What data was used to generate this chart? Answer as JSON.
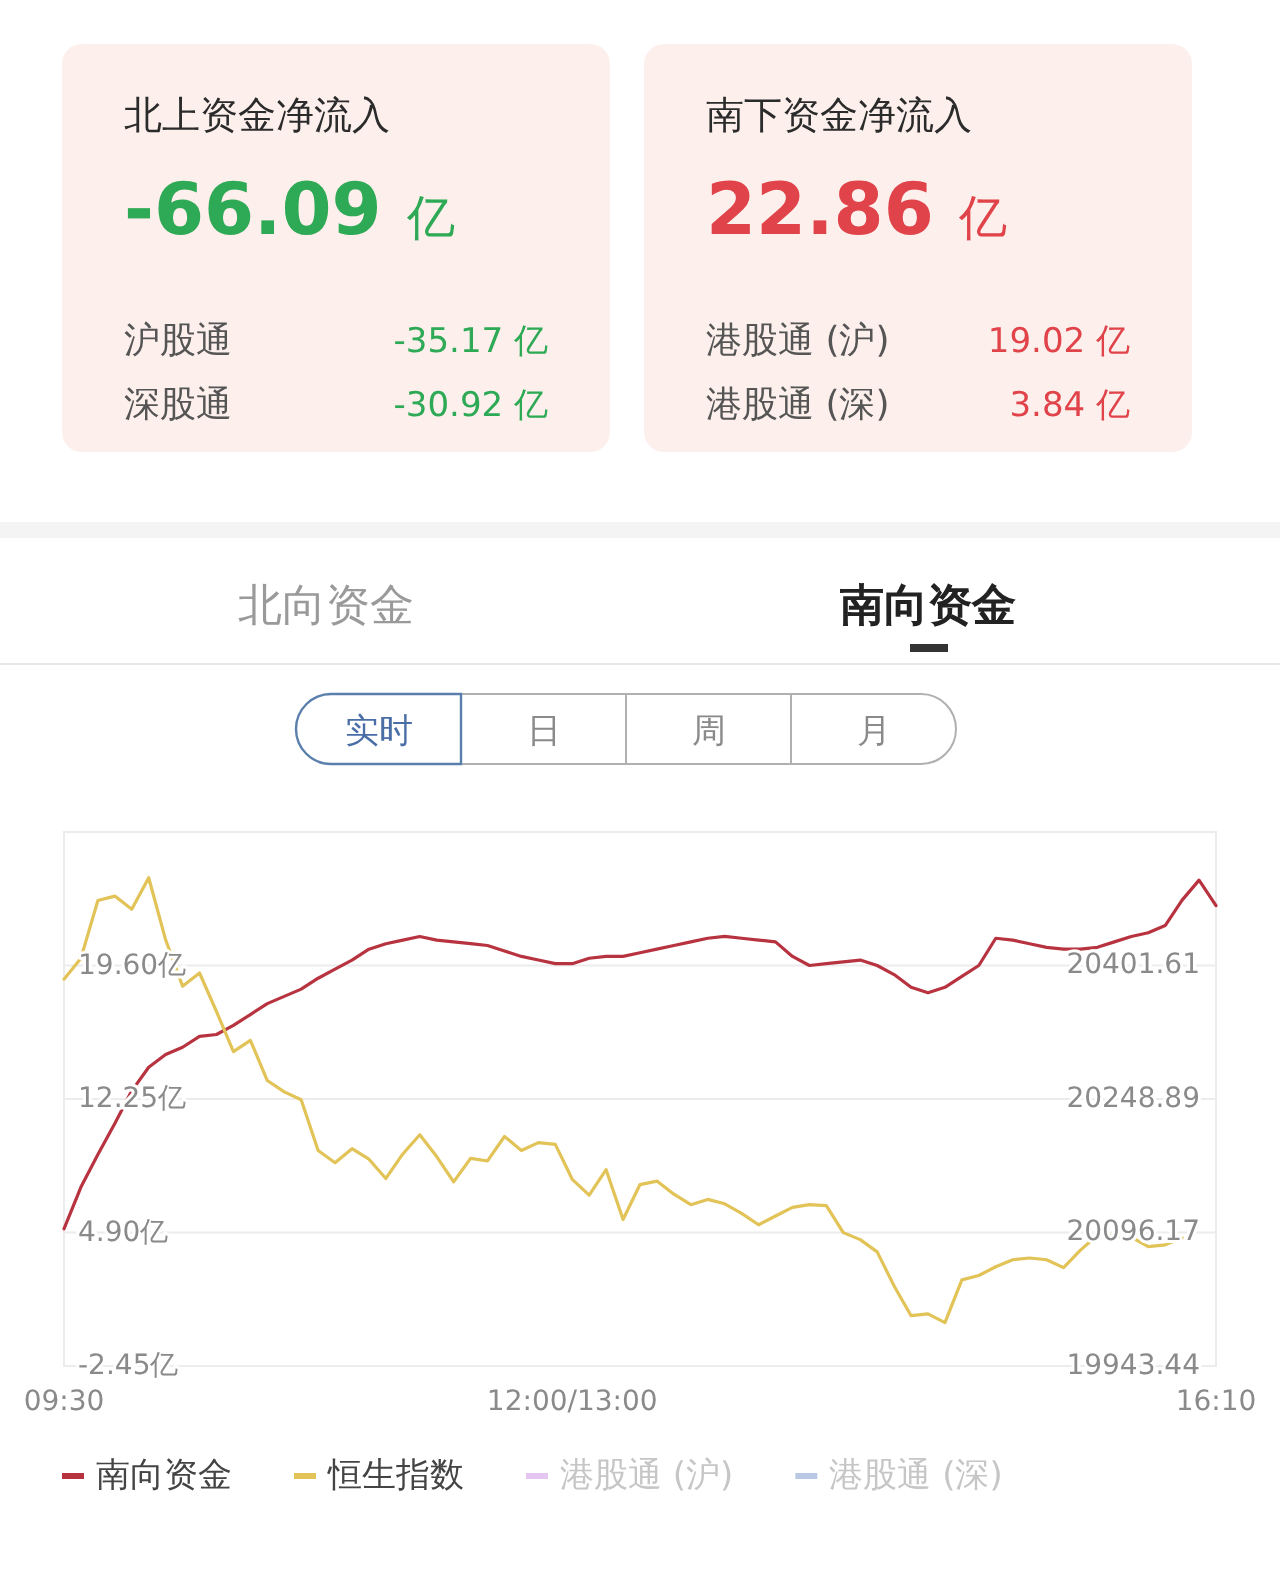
{
  "chart_data": [
    {
      "type": "other",
      "title": "北上资金净流入",
      "color": "#2ea955",
      "annotations": [
        "-66.09 亿",
        "沪股通",
        "-35.17 亿",
        "深股通",
        "-30.92 亿"
      ]
    },
    {
      "type": "other",
      "title": "南下资金净流入",
      "color": "#e0434a",
      "annotations": [
        "22.86 亿",
        "港股通 (沪)",
        "19.02 亿",
        "港股通 (深)",
        "3.84 亿"
      ]
    },
    {
      "type": "other",
      "annotations": [
        "北向资金",
        "南向资金",
        "实时",
        "日",
        "周",
        "月"
      ]
    },
    {
      "type": "line",
      "categories": [
        "09:30",
        null,
        null,
        null,
        null,
        null,
        null,
        null,
        null,
        null,
        null,
        null,
        null,
        null,
        null,
        null,
        null,
        null,
        null,
        null,
        null,
        null,
        null,
        null,
        null,
        null,
        null,
        null,
        null,
        null,
        "12:00/13:00",
        null,
        null,
        null,
        null,
        null,
        null,
        null,
        null,
        null,
        null,
        null,
        null,
        null,
        null,
        null,
        null,
        null,
        null,
        null,
        null,
        null,
        null,
        null,
        null,
        null,
        null,
        null,
        null,
        null,
        null,
        null,
        null,
        null,
        null,
        null,
        null,
        null,
        "16:10"
      ],
      "ylim": [
        -2.45,
        26.95
      ],
      "yticks": [
        {
          "value": -2.45,
          "label": "-2.45亿"
        },
        {
          "value": 4.9,
          "label": "4.90亿"
        },
        {
          "value": 12.25,
          "label": "12.25亿"
        },
        {
          "value": 19.6,
          "label": "19.60亿"
        }
      ],
      "y2lim": [
        19943.44,
        20554.33
      ],
      "y2ticks": [
        19943.44,
        20096.17,
        20248.89,
        20401.61
      ],
      "grid": "y",
      "legend": "bottom",
      "marker": "none",
      "line_style": "solid",
      "series": [
        {
          "name": "南向资金",
          "color": "#b83340",
          "values": [
            5.1,
            7.4,
            9.2,
            10.9,
            12.7,
            14.0,
            14.7,
            15.1,
            15.7,
            15.8,
            16.3,
            16.9,
            17.5,
            17.9,
            18.3,
            18.9,
            19.4,
            19.9,
            20.5,
            20.8,
            21.0,
            21.2,
            21.0,
            20.9,
            20.8,
            20.7,
            20.4,
            20.1,
            19.9,
            19.7,
            19.7,
            20.0,
            20.1,
            20.1,
            20.3,
            20.5,
            20.7,
            20.9,
            21.1,
            21.2,
            21.1,
            21.0,
            20.9,
            20.1,
            19.6,
            19.7,
            19.8,
            19.9,
            19.6,
            19.1,
            18.4,
            18.1,
            18.4,
            19.0,
            19.6,
            21.1,
            21.0,
            20.8,
            20.6,
            20.5,
            20.5,
            20.6,
            20.9,
            21.2,
            21.4,
            21.8,
            23.2,
            24.3,
            22.9
          ]
        },
        {
          "name": "恒生指数",
          "color": "#e2c357",
          "axis": "y2",
          "values": [
            20386,
            20410,
            20476,
            20481,
            20466,
            20502,
            20431,
            20378,
            20393,
            20349,
            20303,
            20316,
            20270,
            20257,
            20248,
            20190,
            20176,
            20192,
            20180,
            20158,
            20186,
            20208,
            20183,
            20154,
            20181,
            20178,
            20206,
            20190,
            20199,
            20197,
            20157,
            20139,
            20168,
            20111,
            20151,
            20155,
            20140,
            20128,
            20134,
            20129,
            20118,
            20105,
            20115,
            20125,
            20128,
            20127,
            20096,
            20088,
            20074,
            20035,
            20001,
            20003,
            19993,
            20042,
            20047,
            20057,
            20065,
            20067,
            20065,
            20056,
            20076,
            20093,
            20092,
            20091,
            20080,
            20082,
            20090,
            null,
            null
          ]
        },
        {
          "name": "港股通 (沪)",
          "color": "#e4c6f0",
          "values": [
            null,
            null,
            null,
            null,
            null,
            null,
            null,
            null,
            null,
            null,
            null,
            null,
            null,
            null,
            null,
            null,
            null,
            null,
            null,
            null,
            null,
            null,
            null,
            null,
            null,
            null,
            null,
            null,
            null,
            null,
            null,
            null,
            null,
            null,
            null,
            null,
            null,
            null,
            null,
            null,
            null,
            null,
            null,
            null,
            null,
            null,
            null,
            null,
            null,
            null,
            null,
            null,
            null,
            null,
            null,
            null,
            null,
            null,
            null,
            null,
            null,
            null,
            null,
            null,
            null,
            null,
            null,
            null,
            null
          ]
        },
        {
          "name": "港股通 (深)",
          "color": "#b9c9e3",
          "values": [
            null,
            null,
            null,
            null,
            null,
            null,
            null,
            null,
            null,
            null,
            null,
            null,
            null,
            null,
            null,
            null,
            null,
            null,
            null,
            null,
            null,
            null,
            null,
            null,
            null,
            null,
            null,
            null,
            null,
            null,
            null,
            null,
            null,
            null,
            null,
            null,
            null,
            null,
            null,
            null,
            null,
            null,
            null,
            null,
            null,
            null,
            null,
            null,
            null,
            null,
            null,
            null,
            null,
            null,
            null,
            null,
            null,
            null,
            null,
            null,
            null,
            null,
            null,
            null,
            null,
            null,
            null,
            null,
            null
          ]
        }
      ]
    }
  ]
}
